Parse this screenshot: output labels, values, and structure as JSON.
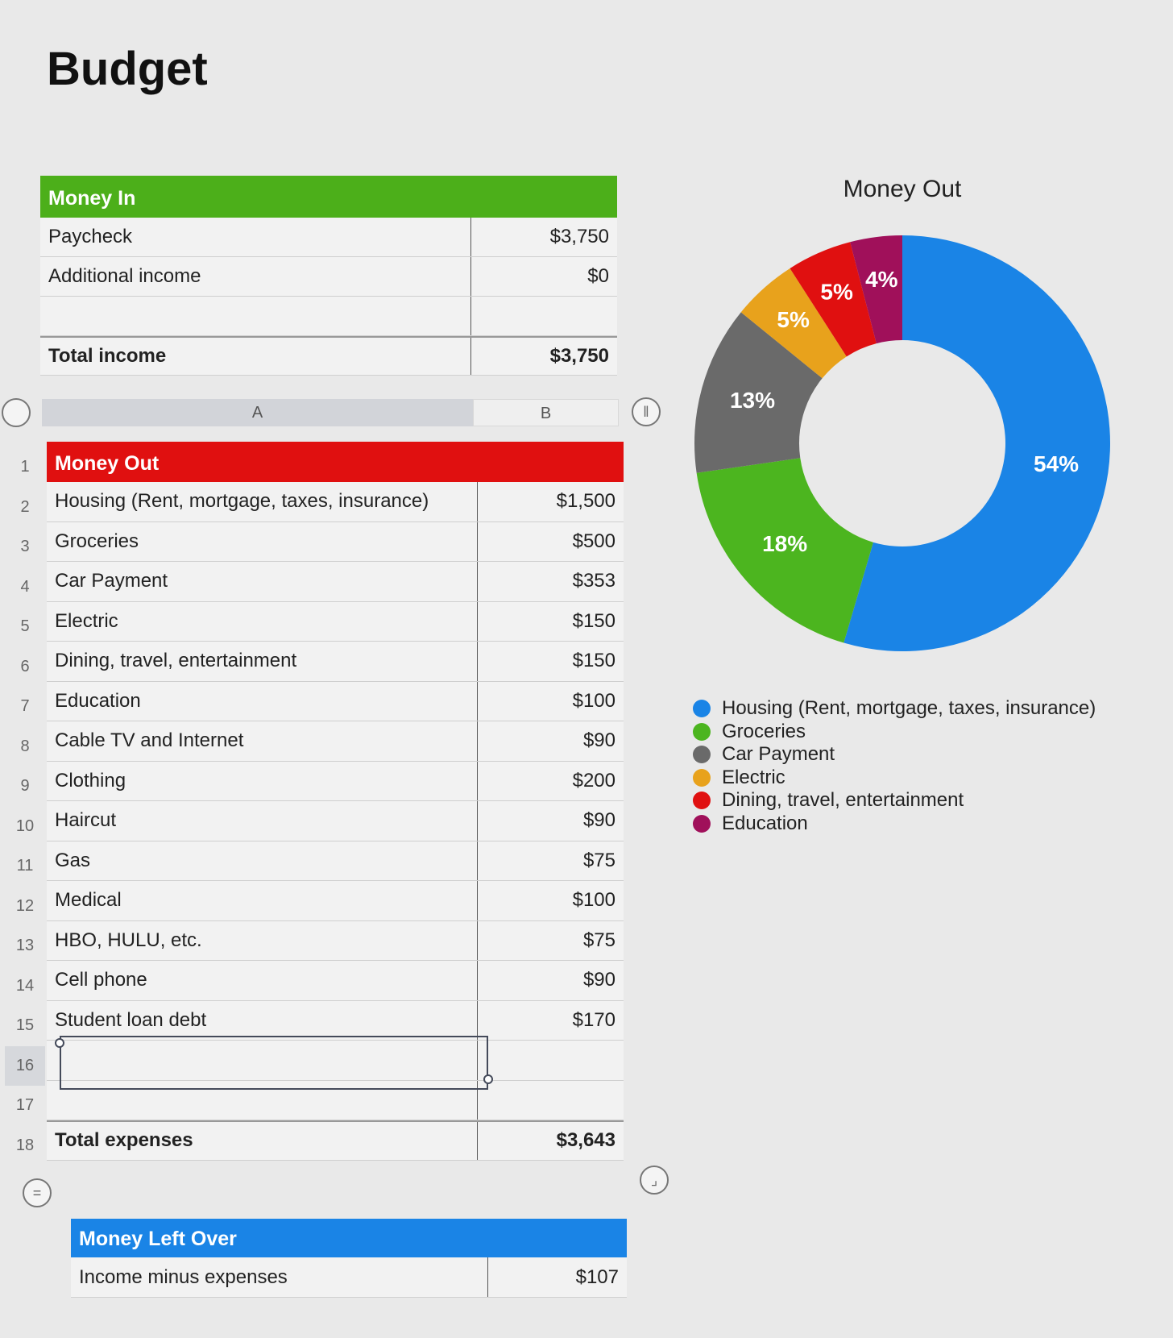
{
  "title": "Budget",
  "money_in": {
    "header": "Money In",
    "rows": [
      {
        "label": "Paycheck",
        "value": "$3,750"
      },
      {
        "label": "Additional income",
        "value": "$0"
      },
      {
        "label": "",
        "value": ""
      }
    ],
    "total_label": "Total income",
    "total_value": "$3,750"
  },
  "columns": {
    "a": "A",
    "b": "B"
  },
  "row_numbers": [
    "1",
    "2",
    "3",
    "4",
    "5",
    "6",
    "7",
    "8",
    "9",
    "10",
    "11",
    "12",
    "13",
    "14",
    "15",
    "16",
    "17",
    "18"
  ],
  "money_out": {
    "header": "Money Out",
    "rows": [
      {
        "label": "Housing (Rent, mortgage, taxes, insurance)",
        "value": "$1,500"
      },
      {
        "label": "Groceries",
        "value": "$500"
      },
      {
        "label": "Car Payment",
        "value": "$353"
      },
      {
        "label": "Electric",
        "value": "$150"
      },
      {
        "label": "Dining, travel, entertainment",
        "value": "$150"
      },
      {
        "label": "Education",
        "value": "$100"
      },
      {
        "label": "Cable TV and Internet",
        "value": "$90"
      },
      {
        "label": "Clothing",
        "value": "$200"
      },
      {
        "label": "Haircut",
        "value": "$90"
      },
      {
        "label": "Gas",
        "value": "$75"
      },
      {
        "label": "Medical",
        "value": "$100"
      },
      {
        "label": "HBO, HULU, etc.",
        "value": "$75"
      },
      {
        "label": "Cell phone",
        "value": "$90"
      },
      {
        "label": "Student loan debt",
        "value": "$170"
      },
      {
        "label": "",
        "value": ""
      },
      {
        "label": "",
        "value": ""
      }
    ],
    "total_label": "Total expenses",
    "total_value": "$3,643"
  },
  "left_over": {
    "header": "Money Left Over",
    "label": "Income minus expenses",
    "value": "$107"
  },
  "colors": {
    "money_in": "#4caf1a",
    "money_out": "#e01010",
    "left_over": "#1a84e6"
  },
  "chart_data": {
    "type": "pie",
    "title": "Money Out",
    "donut": true,
    "legend_position": "bottom-left",
    "categories": [
      "Housing (Rent, mortgage, taxes, insurance)",
      "Groceries",
      "Car Payment",
      "Electric",
      "Dining, travel, entertainment",
      "Education"
    ],
    "values": [
      54,
      18,
      13,
      5,
      5,
      4
    ],
    "labels": [
      "54%",
      "18%",
      "13%",
      "5%",
      "5%",
      "4%"
    ],
    "colors": [
      "#1a84e6",
      "#4cb51f",
      "#6a6a6a",
      "#e8a21c",
      "#e01010",
      "#a0105a"
    ]
  }
}
